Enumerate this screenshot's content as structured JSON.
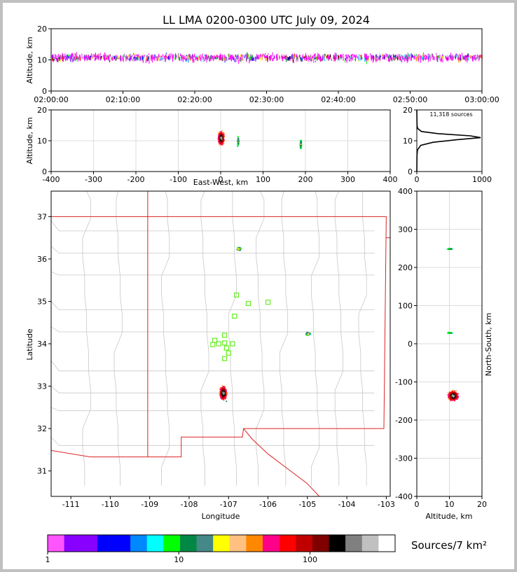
{
  "title": "LL LMA 0200-0300 UTC July 09, 2024",
  "colors": {
    "axis": "#000000",
    "grid": "#dcdcdc",
    "map_border": "#c8c8c8",
    "state_border": "#dd2222",
    "station": "#66ee22"
  },
  "chart_data": [
    {
      "type": "scatter",
      "name": "time-height",
      "ylabel": "Altitude, km",
      "xlabel": "",
      "x_ticks": [
        "02:00:00",
        "02:10:00",
        "02:20:00",
        "02:30:00",
        "02:40:00",
        "02:50:00",
        "03:00:00"
      ],
      "x_range_minutes": [
        0,
        60
      ],
      "ylim": [
        0,
        20
      ],
      "y_ticks": [
        0,
        10,
        20
      ],
      "grid": false
    },
    {
      "type": "scatter",
      "name": "ew-height",
      "ylabel": "Altitude, km",
      "xlabel": "East-West, km",
      "xlim": [
        -400,
        400
      ],
      "x_ticks": [
        -400,
        -300,
        -200,
        -100,
        0,
        100,
        200,
        300,
        400
      ],
      "ylim": [
        0,
        20
      ],
      "y_ticks": [
        0,
        10,
        20
      ],
      "grid": true,
      "clusters": [
        {
          "x": 0,
          "y": 11,
          "label": "main"
        },
        {
          "x": 40,
          "y": 10,
          "label": "east"
        },
        {
          "x": 188,
          "y": 9,
          "label": "far-east"
        }
      ]
    },
    {
      "type": "line",
      "name": "altitude-histogram",
      "annotation": "11,318 sources",
      "xlim": [
        0,
        1000
      ],
      "x_ticks": [
        0,
        1000
      ],
      "ylim": [
        0,
        20
      ],
      "y_ticks": [
        0,
        10,
        20
      ],
      "profile": [
        {
          "alt": 0,
          "count": 0
        },
        {
          "alt": 5,
          "count": 2
        },
        {
          "alt": 7,
          "count": 10
        },
        {
          "alt": 8.5,
          "count": 60
        },
        {
          "alt": 9.5,
          "count": 250
        },
        {
          "alt": 10.3,
          "count": 600
        },
        {
          "alt": 11,
          "count": 980
        },
        {
          "alt": 11.6,
          "count": 820
        },
        {
          "alt": 12.3,
          "count": 330
        },
        {
          "alt": 13,
          "count": 70
        },
        {
          "alt": 14,
          "count": 12
        },
        {
          "alt": 15,
          "count": 3
        },
        {
          "alt": 20,
          "count": 0
        }
      ]
    },
    {
      "type": "scatter",
      "name": "plan-view",
      "xlabel": "Longitude",
      "ylabel": "Latitude",
      "xlim": [
        -111.5,
        -102.9
      ],
      "ylim": [
        30.4,
        37.6
      ],
      "x_ticks": [
        -111,
        -110,
        -109,
        -108,
        -107,
        -106,
        -105,
        -104,
        -103
      ],
      "y_ticks": [
        31,
        32,
        33,
        34,
        35,
        36,
        37
      ],
      "clusters": [
        {
          "lon": -107.15,
          "lat": 32.85,
          "label": "main"
        },
        {
          "lon": -106.75,
          "lat": 36.25,
          "label": "north"
        },
        {
          "lon": -105.0,
          "lat": 34.25,
          "label": "east"
        }
      ],
      "stations": [
        {
          "lon": -106.8,
          "lat": 35.15
        },
        {
          "lon": -106.5,
          "lat": 34.95
        },
        {
          "lon": -106.0,
          "lat": 34.98
        },
        {
          "lon": -106.85,
          "lat": 34.65
        },
        {
          "lon": -107.1,
          "lat": 34.2
        },
        {
          "lon": -107.35,
          "lat": 34.08
        },
        {
          "lon": -107.4,
          "lat": 33.98
        },
        {
          "lon": -107.25,
          "lat": 34.0
        },
        {
          "lon": -107.1,
          "lat": 34.02
        },
        {
          "lon": -106.9,
          "lat": 34.0
        },
        {
          "lon": -107.05,
          "lat": 33.9
        },
        {
          "lon": -107.0,
          "lat": 33.78
        },
        {
          "lon": -107.1,
          "lat": 33.65
        }
      ]
    },
    {
      "type": "scatter",
      "name": "height-ns",
      "xlabel": "Altitude, km",
      "ylabel": "North-South, km",
      "xlim": [
        0,
        20
      ],
      "x_ticks": [
        0,
        10,
        20
      ],
      "ylim": [
        -400,
        400
      ],
      "y_ticks": [
        -400,
        -300,
        -200,
        -100,
        0,
        100,
        200,
        300,
        400
      ],
      "grid": true,
      "clusters": [
        {
          "x": 11,
          "y": -135,
          "label": "main"
        },
        {
          "x": 10,
          "y": 250,
          "label": "north"
        },
        {
          "x": 10,
          "y": 30,
          "label": "east"
        }
      ]
    }
  ],
  "colorbar": {
    "label": "Sources/7 km²",
    "tick_labels": [
      "1",
      "10",
      "100"
    ],
    "colors": [
      "#ff55ff",
      "#8800ff",
      "#8800ff",
      "#0000ff",
      "#0000ff",
      "#0088ff",
      "#00ffff",
      "#00ff00",
      "#008844",
      "#448888",
      "#ffff00",
      "#ffc080",
      "#ff8800",
      "#ff0088",
      "#ff0000",
      "#c00000",
      "#800000",
      "#000000",
      "#808080",
      "#c0c0c0",
      "#ffffff"
    ]
  }
}
